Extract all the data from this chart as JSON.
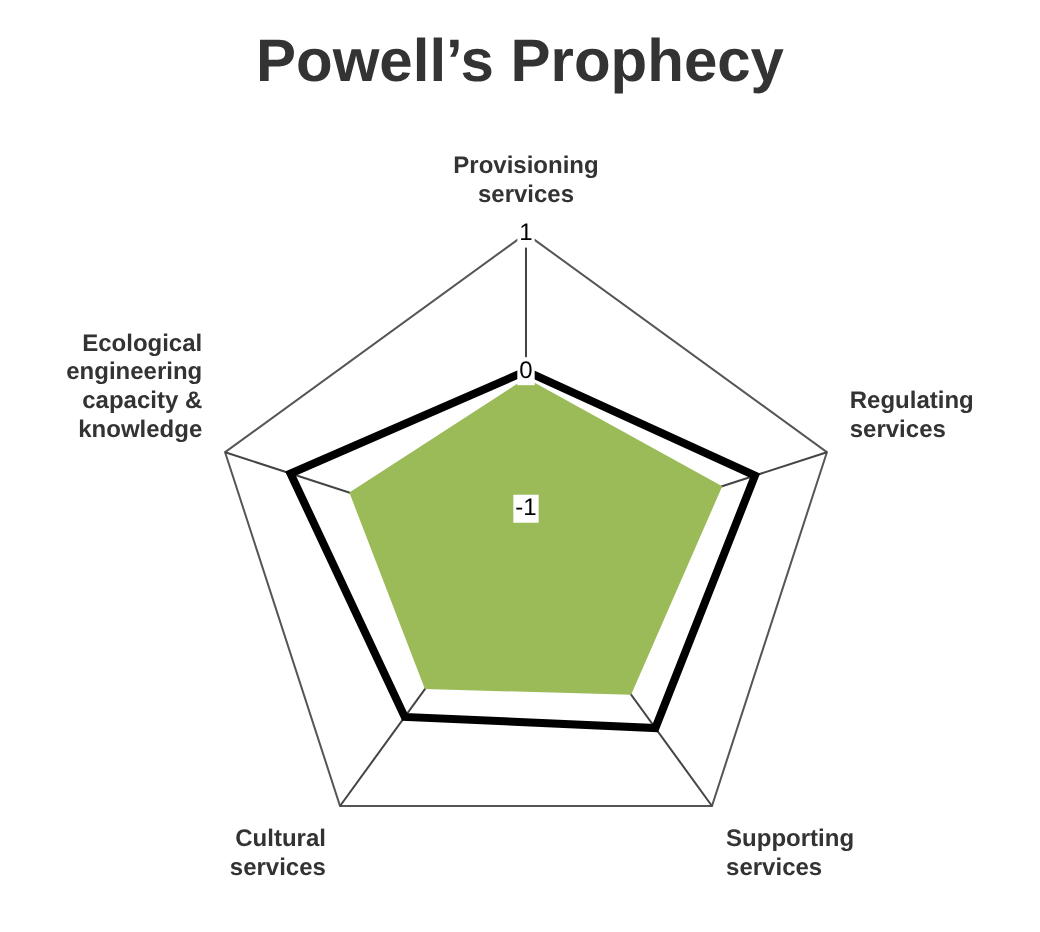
{
  "chart_data": {
    "type": "radar",
    "title": "Powell’s Prophecy",
    "categories": [
      "Provisioning services",
      "Regulating services",
      "Supporting services",
      "Cultural services",
      "Ecological engineering capacity & knowledge"
    ],
    "series": [
      {
        "type": "area",
        "color": "#9bbb59",
        "values": [
          -0.05,
          0.2,
          0,
          -0.05,
          0.05
        ]
      },
      {
        "color": "#000000",
        "values": [
          0,
          0.45,
          0.3,
          0.2,
          0.5
        ]
      }
    ],
    "ylim": [
      -1.3,
      1
    ],
    "yticks": [
      -1,
      0,
      1
    ],
    "grid": false,
    "legend": false,
    "marker": "none"
  }
}
